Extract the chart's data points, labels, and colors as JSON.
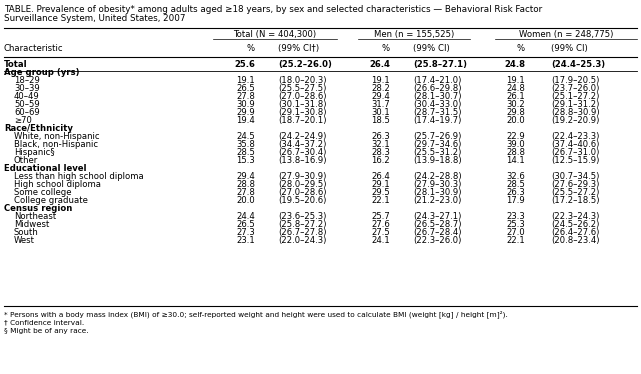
{
  "title_line1": "TABLE. Prevalence of obesity* among adults aged ≥18 years, by sex and selected characteristics — Behavioral Risk Factor",
  "title_line2": "Surveillance System, United States, 2007",
  "col_headers_group": [
    "Total (N = 404,300)",
    "Men (n = 155,525)",
    "Women (n = 248,775)"
  ],
  "col_headers_sub": [
    "%",
    "(99% CI†)",
    "%",
    "(99% CI)",
    "%",
    "(99% CI)"
  ],
  "char_header": "Characteristic",
  "rows": [
    {
      "label": "Total",
      "bold": true,
      "indent": false,
      "section": false,
      "vals": [
        "25.6",
        "(25.2–26.0)",
        "26.4",
        "(25.8–27.1)",
        "24.8",
        "(24.4–25.3)"
      ]
    },
    {
      "label": "Age group (yrs)",
      "bold": true,
      "indent": false,
      "section": true,
      "vals": []
    },
    {
      "label": "18–29",
      "bold": false,
      "indent": true,
      "section": false,
      "vals": [
        "19.1",
        "(18.0–20.3)",
        "19.1",
        "(17.4–21.0)",
        "19.1",
        "(17.9–20.5)"
      ]
    },
    {
      "label": "30–39",
      "bold": false,
      "indent": true,
      "section": false,
      "vals": [
        "26.5",
        "(25.5–27.5)",
        "28.2",
        "(26.6–29.8)",
        "24.8",
        "(23.7–26.0)"
      ]
    },
    {
      "label": "40–49",
      "bold": false,
      "indent": true,
      "section": false,
      "vals": [
        "27.8",
        "(27.0–28.6)",
        "29.4",
        "(28.1–30.7)",
        "26.1",
        "(25.1–27.2)"
      ]
    },
    {
      "label": "50–59",
      "bold": false,
      "indent": true,
      "section": false,
      "vals": [
        "30.9",
        "(30.1–31.8)",
        "31.7",
        "(30.4–33.0)",
        "30.2",
        "(29.1–31.2)"
      ]
    },
    {
      "label": "60–69",
      "bold": false,
      "indent": true,
      "section": false,
      "vals": [
        "29.9",
        "(29.1–30.8)",
        "30.1",
        "(28.7–31.5)",
        "29.8",
        "(28.8–30.9)"
      ]
    },
    {
      "label": "≥70",
      "bold": false,
      "indent": true,
      "section": false,
      "vals": [
        "19.4",
        "(18.7–20.1)",
        "18.5",
        "(17.4–19.7)",
        "20.0",
        "(19.2–20.9)"
      ]
    },
    {
      "label": "Race/Ethnicity",
      "bold": true,
      "indent": false,
      "section": true,
      "vals": []
    },
    {
      "label": "White, non-Hispanic",
      "bold": false,
      "indent": true,
      "section": false,
      "vals": [
        "24.5",
        "(24.2–24.9)",
        "26.3",
        "(25.7–26.9)",
        "22.9",
        "(22.4–23.3)"
      ]
    },
    {
      "label": "Black, non-Hispanic",
      "bold": false,
      "indent": true,
      "section": false,
      "vals": [
        "35.8",
        "(34.4–37.2)",
        "32.1",
        "(29.7–34.6)",
        "39.0",
        "(37.4–40.6)"
      ]
    },
    {
      "label": "Hispanic§",
      "bold": false,
      "indent": true,
      "section": false,
      "vals": [
        "28.5",
        "(26.7–30.4)",
        "28.3",
        "(25.5–31.2)",
        "28.8",
        "(26.7–31.0)"
      ]
    },
    {
      "label": "Other",
      "bold": false,
      "indent": true,
      "section": false,
      "vals": [
        "15.3",
        "(13.8–16.9)",
        "16.2",
        "(13.9–18.8)",
        "14.1",
        "(12.5–15.9)"
      ]
    },
    {
      "label": "Educational level",
      "bold": true,
      "indent": false,
      "section": true,
      "vals": []
    },
    {
      "label": "Less than high school diploma",
      "bold": false,
      "indent": true,
      "section": false,
      "vals": [
        "29.4",
        "(27.9–30.9)",
        "26.4",
        "(24.2–28.8)",
        "32.6",
        "(30.7–34.5)"
      ]
    },
    {
      "label": "High school diploma",
      "bold": false,
      "indent": true,
      "section": false,
      "vals": [
        "28.8",
        "(28.0–29.5)",
        "29.1",
        "(27.9–30.3)",
        "28.5",
        "(27.6–29.3)"
      ]
    },
    {
      "label": "Some college",
      "bold": false,
      "indent": true,
      "section": false,
      "vals": [
        "27.8",
        "(27.0–28.6)",
        "29.5",
        "(28.1–30.9)",
        "26.3",
        "(25.5–27.2)"
      ]
    },
    {
      "label": "College graduate",
      "bold": false,
      "indent": true,
      "section": false,
      "vals": [
        "20.0",
        "(19.5–20.6)",
        "22.1",
        "(21.2–23.0)",
        "17.9",
        "(17.2–18.5)"
      ]
    },
    {
      "label": "Census region",
      "bold": true,
      "indent": false,
      "section": true,
      "vals": []
    },
    {
      "label": "Northeast",
      "bold": false,
      "indent": true,
      "section": false,
      "vals": [
        "24.4",
        "(23.6–25.3)",
        "25.7",
        "(24.3–27.1)",
        "23.3",
        "(22.3–24.3)"
      ]
    },
    {
      "label": "Midwest",
      "bold": false,
      "indent": true,
      "section": false,
      "vals": [
        "26.5",
        "(25.8–27.2)",
        "27.6",
        "(26.5–28.7)",
        "25.3",
        "(24.5–26.2)"
      ]
    },
    {
      "label": "South",
      "bold": false,
      "indent": true,
      "section": false,
      "vals": [
        "27.3",
        "(26.7–27.8)",
        "27.5",
        "(26.7–28.4)",
        "27.0",
        "(26.4–27.6)"
      ]
    },
    {
      "label": "West",
      "bold": false,
      "indent": true,
      "section": false,
      "vals": [
        "23.1",
        "(22.0–24.3)",
        "24.1",
        "(22.3–26.0)",
        "22.1",
        "(20.8–23.4)"
      ]
    }
  ],
  "footnotes": [
    "* Persons with a body mass index (BMI) of ≥30.0; self-reported weight and height were used to calculate BMI (weight [kg] / height [m]²).",
    "† Confidence interval.",
    "§ Might be of any race."
  ],
  "bg_color": "white",
  "text_color": "black",
  "line_color": "black",
  "title_fs": 6.3,
  "header_fs": 6.1,
  "data_fs": 6.1,
  "footnote_fs": 5.3
}
